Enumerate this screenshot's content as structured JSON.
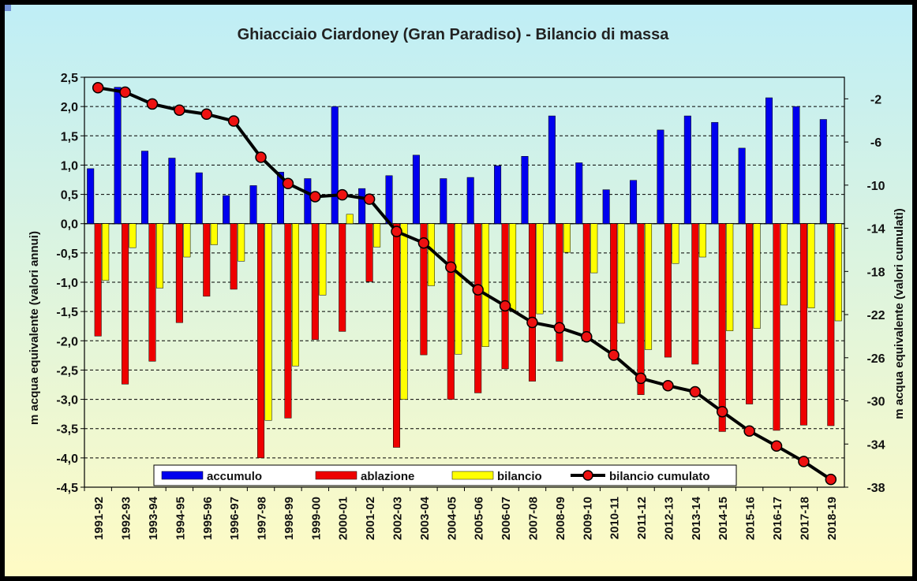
{
  "chart_data": {
    "type": "bar",
    "title": "Ghiacciaio Ciardoney (Gran Paradiso) - Bilancio di massa",
    "ylabel": "m acqua equivalente (valori annui)",
    "y2label": "m acqua equivalente (valori cumulati)",
    "ylim": [
      -4.5,
      2.5
    ],
    "y2lim": [
      -38,
      0
    ],
    "yticks": [
      "2,5",
      "2,0",
      "1,5",
      "1,0",
      "0,5",
      "0,0",
      "-0,5",
      "-1,0",
      "-1,5",
      "-2,0",
      "-2,5",
      "-3,0",
      "-3,5",
      "-4,0",
      "-4,5"
    ],
    "y2ticks": [
      "-2",
      "-6",
      "-10",
      "-14",
      "-18",
      "-22",
      "-26",
      "-30",
      "-34",
      "-38"
    ],
    "grid": true,
    "legend_position": "bottom",
    "categories": [
      "1991-92",
      "1992-93",
      "1993-94",
      "1994-95",
      "1995-96",
      "1996-97",
      "1997-98",
      "1998-99",
      "1999-00",
      "2000-01",
      "2001-02",
      "2002-03",
      "2003-04",
      "2004-05",
      "2005-06",
      "2006-07",
      "2007-08",
      "2008-09",
      "2009-10",
      "2010-11",
      "2011-12",
      "2012-13",
      "2013-14",
      "2014-15",
      "2015-16",
      "2016-17",
      "2017-18",
      "2018-19"
    ],
    "series": [
      {
        "name": "accumulo",
        "color": "#0000ee",
        "axis": "left",
        "kind": "bar",
        "values": [
          0.94,
          2.33,
          1.24,
          1.12,
          0.87,
          0.48,
          0.65,
          0.88,
          0.77,
          2.0,
          0.6,
          0.82,
          1.17,
          0.77,
          0.79,
          0.99,
          1.15,
          1.84,
          1.04,
          0.58,
          0.74,
          1.6,
          1.84,
          1.73,
          1.29,
          2.15,
          2.0,
          1.78
        ]
      },
      {
        "name": "ablazione",
        "color": "#ee0000",
        "axis": "left",
        "kind": "bar",
        "values": [
          -1.92,
          -2.74,
          -2.35,
          -1.69,
          -1.24,
          -1.12,
          -4.0,
          -3.32,
          -1.98,
          -1.84,
          -0.99,
          -3.82,
          -2.24,
          -3.0,
          -2.89,
          -2.48,
          -2.69,
          -2.35,
          -1.99,
          -2.28,
          -2.92,
          -2.28,
          -2.4,
          -3.55,
          -3.08,
          -3.53,
          -3.44,
          -3.45
        ]
      },
      {
        "name": "bilancio",
        "color": "#ffff00",
        "axis": "left",
        "kind": "bar",
        "values": [
          -0.97,
          -0.41,
          -1.1,
          -0.57,
          -0.36,
          -0.64,
          -3.36,
          -2.43,
          -1.22,
          0.16,
          -0.4,
          -3.0,
          -1.06,
          -2.23,
          -2.1,
          -1.49,
          -1.54,
          -0.49,
          -0.84,
          -1.7,
          -2.15,
          -0.68,
          -0.57,
          -1.83,
          -1.79,
          -1.39,
          -1.44,
          -1.66
        ]
      },
      {
        "name": "bilancio cumulato",
        "color": "#000000",
        "marker_color": "#ee1111",
        "axis": "right",
        "kind": "line",
        "values": [
          -0.97,
          -1.38,
          -2.48,
          -3.05,
          -3.42,
          -4.06,
          -7.42,
          -9.85,
          -11.07,
          -10.9,
          -11.3,
          -14.3,
          -15.36,
          -17.6,
          -19.7,
          -21.19,
          -22.73,
          -23.22,
          -24.06,
          -25.76,
          -27.91,
          -28.59,
          -29.16,
          -31.0,
          -32.79,
          -34.18,
          -35.62,
          -37.28
        ]
      }
    ]
  }
}
